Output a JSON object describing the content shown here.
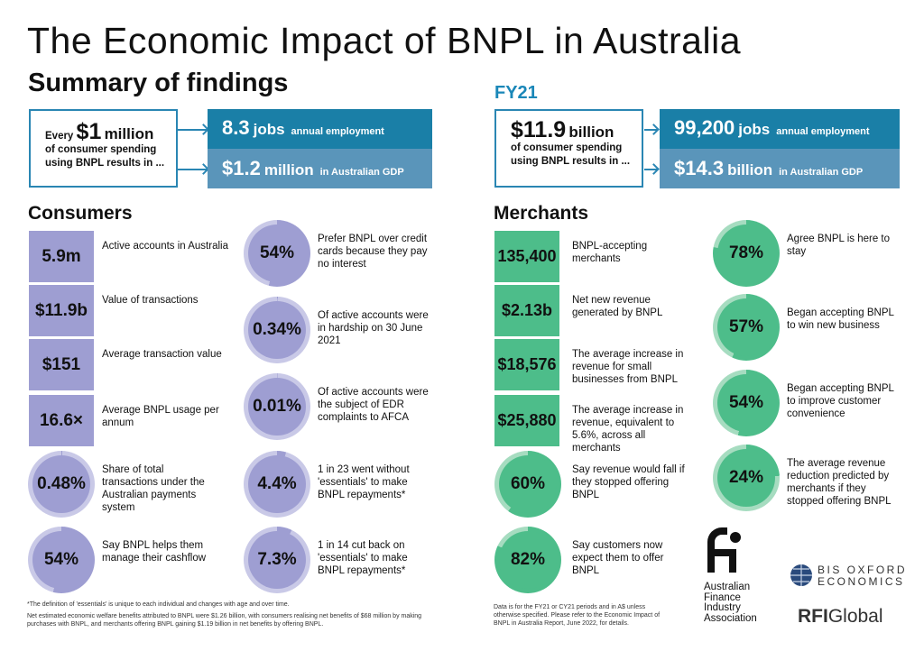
{
  "title": "The Economic Impact of BNPL in Australia",
  "subtitle": "Summary of findings",
  "period": "FY21",
  "per_million": {
    "every": "Every",
    "amount": "$1",
    "unit": "million",
    "rest1": "of consumer spending",
    "rest2": "using BNPL results in ...",
    "jobs": {
      "value": "8.3",
      "unit": "jobs",
      "desc": "annual employment"
    },
    "gdp": {
      "value": "$1.2",
      "unit": "million",
      "desc": "in Australian GDP"
    }
  },
  "total": {
    "amount": "$11.9",
    "unit": "billion",
    "rest1": "of consumer spending",
    "rest2": "using BNPL results in ...",
    "jobs": {
      "value": "99,200",
      "unit": "jobs",
      "desc": "annual employment"
    },
    "gdp": {
      "value": "$14.3",
      "unit": "billion",
      "desc": "in Australian GDP"
    }
  },
  "consumers": {
    "heading": "Consumers",
    "boxes": [
      {
        "value": "5.9m",
        "label": "Active accounts in Australia"
      },
      {
        "value": "$11.9b",
        "label": "Value of transactions"
      },
      {
        "value": "$151",
        "label": "Average transaction value"
      },
      {
        "value": "16.6×",
        "label": "Average BNPL usage per annum"
      }
    ],
    "rings": [
      {
        "value": "0.48%",
        "pct": 0.48,
        "label": "Share of total transactions under the Australian payments system"
      },
      {
        "value": "54%",
        "pct": 54,
        "label": "Say BNPL helps them manage their cashflow"
      },
      {
        "value": "54%",
        "pct": 54,
        "label": "Prefer BNPL over credit cards because they pay no interest"
      },
      {
        "value": "0.34%",
        "pct": 0.34,
        "label": "Of active accounts were in hardship on 30 June 2021"
      },
      {
        "value": "0.01%",
        "pct": 0.01,
        "label": "Of active accounts were the subject of EDR complaints to AFCA"
      },
      {
        "value": "4.4%",
        "pct": 4.4,
        "label": "1 in 23 went without 'essentials' to make BNPL repayments*"
      },
      {
        "value": "7.3%",
        "pct": 7.3,
        "label": "1 in 14 cut back on 'essentials' to make BNPL repayments*"
      }
    ]
  },
  "merchants": {
    "heading": "Merchants",
    "boxes": [
      {
        "value": "135,400",
        "label": "BNPL-accepting merchants"
      },
      {
        "value": "$2.13b",
        "label": "Net new revenue generated by BNPL"
      },
      {
        "value": "$18,576",
        "label": "The average increase in revenue for small businesses from BNPL"
      },
      {
        "value": "$25,880",
        "label": "The average increase in revenue, equivalent to 5.6%, across all merchants"
      }
    ],
    "rings": [
      {
        "value": "60%",
        "pct": 60,
        "label": "Say revenue would fall if they stopped offering BNPL"
      },
      {
        "value": "82%",
        "pct": 82,
        "label": "Say customers now expect them to offer BNPL"
      },
      {
        "value": "78%",
        "pct": 78,
        "label": "Agree BNPL is here to stay"
      },
      {
        "value": "57%",
        "pct": 57,
        "label": "Began accepting BNPL to win new business"
      },
      {
        "value": "54%",
        "pct": 54,
        "label": "Began accepting BNPL to improve customer convenience"
      },
      {
        "value": "24%",
        "pct": 24,
        "label": "The average revenue reduction predicted by merchants if they stopped offering BNPL"
      }
    ]
  },
  "footnotes": {
    "essentials": "*The definition of 'essentials' is unique to each individual and changes with age and over time.",
    "welfare": "Net estimated economic welfare benefits attributed to BNPL were $1.26 billion, with consumers realising net benefits of $68 million by making purchases with BNPL, and merchants offering BNPL gaining $1.19 billion in net benefits by offering BNPL.",
    "data": "Data is for the FY21 or CY21 periods and in A$ unless otherwise specified. Please refer to the Economic Impact of BNPL in Australia Report, June 2022, for details."
  },
  "logos": {
    "afia": "Australian Finance Industry Association",
    "bis1": "BIS OXFORD",
    "bis2": "ECONOMICS",
    "rfi1": "RFI",
    "rfi2": "Global"
  },
  "colors": {
    "blue_dark": "#1a7fa7",
    "blue_light": "#5a95ba",
    "purple": "#9e9ed2",
    "purple_light": "#c9c9e7",
    "green": "#4dbd8a",
    "green_light": "#a6dcc0"
  }
}
